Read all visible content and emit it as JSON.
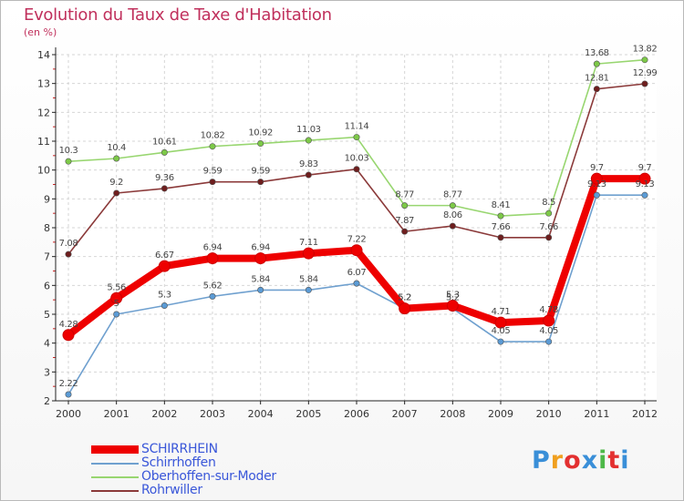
{
  "header": {
    "title": "Evolution du Taux de Taxe d'Habitation",
    "subtitle": "(en %)"
  },
  "logo": {
    "text": "Proxiti",
    "letter_colors": [
      "#3a8fd8",
      "#f0a020",
      "#e33030",
      "#3a8fd8",
      "#4db848",
      "#e33030",
      "#3a8fd8"
    ]
  },
  "chart_data": {
    "type": "line",
    "x": [
      "2000",
      "2001",
      "2002",
      "2003",
      "2004",
      "2005",
      "2006",
      "2007",
      "2008",
      "2009",
      "2010",
      "2011",
      "2012"
    ],
    "ylim": [
      2,
      14
    ],
    "yticks": [
      "2",
      "3",
      "4",
      "5",
      "6",
      "7",
      "8",
      "9",
      "10",
      "11",
      "12",
      "13",
      "14"
    ],
    "grid": true,
    "legend_position": "bottom-left",
    "series": [
      {
        "name": "SCHIRRHEIN",
        "color": "#ee0000",
        "marker_fill": "#ee0000",
        "values": [
          4.28,
          5.56,
          6.67,
          6.94,
          6.94,
          7.11,
          7.22,
          5.2,
          5.3,
          4.71,
          4.78,
          9.7,
          9.7
        ],
        "labels": [
          "4.28",
          "5.56",
          "6.67",
          "6.94",
          "6.94",
          "7.11",
          "7.22",
          "5.2",
          "5.3",
          "4.71",
          "4.78",
          "9.7",
          "9.7"
        ]
      },
      {
        "name": "Schirrhoffen",
        "color": "#6fa0cf",
        "marker_fill": "#5b9bd5",
        "values": [
          2.22,
          5.0,
          5.3,
          5.62,
          5.84,
          5.84,
          6.07,
          5.2,
          5.2,
          4.05,
          4.05,
          9.13,
          9.13
        ],
        "labels": [
          "2.22",
          "5",
          "5.3",
          "5.62",
          "5.84",
          "5.84",
          "6.07",
          "5.2",
          "5.2",
          "4.05",
          "4.05",
          "9.13",
          "9.13"
        ]
      },
      {
        "name": "Oberhoffen-sur-Moder",
        "color": "#98d670",
        "marker_fill": "#7dc948",
        "values": [
          10.3,
          10.4,
          10.61,
          10.82,
          10.92,
          11.03,
          11.14,
          8.77,
          8.77,
          8.41,
          8.5,
          13.68,
          13.82
        ],
        "labels": [
          "10.3",
          "10.4",
          "10.61",
          "10.82",
          "10.92",
          "11.03",
          "11.14",
          "8.77",
          "8.77",
          "8.41",
          "8.5",
          "13.68",
          "13.82"
        ]
      },
      {
        "name": "Rohrwiller",
        "color": "#8b3a3a",
        "marker_fill": "#6e1e1e",
        "values": [
          7.08,
          9.2,
          9.36,
          9.59,
          9.59,
          9.83,
          10.03,
          7.87,
          8.06,
          7.66,
          7.66,
          12.81,
          12.99
        ],
        "labels": [
          "7.08",
          "9.2",
          "9.36",
          "9.59",
          "9.59",
          "9.83",
          "10.03",
          "7.87",
          "8.06",
          "7.66",
          "7.66",
          "12.81",
          "12.99"
        ]
      }
    ]
  }
}
